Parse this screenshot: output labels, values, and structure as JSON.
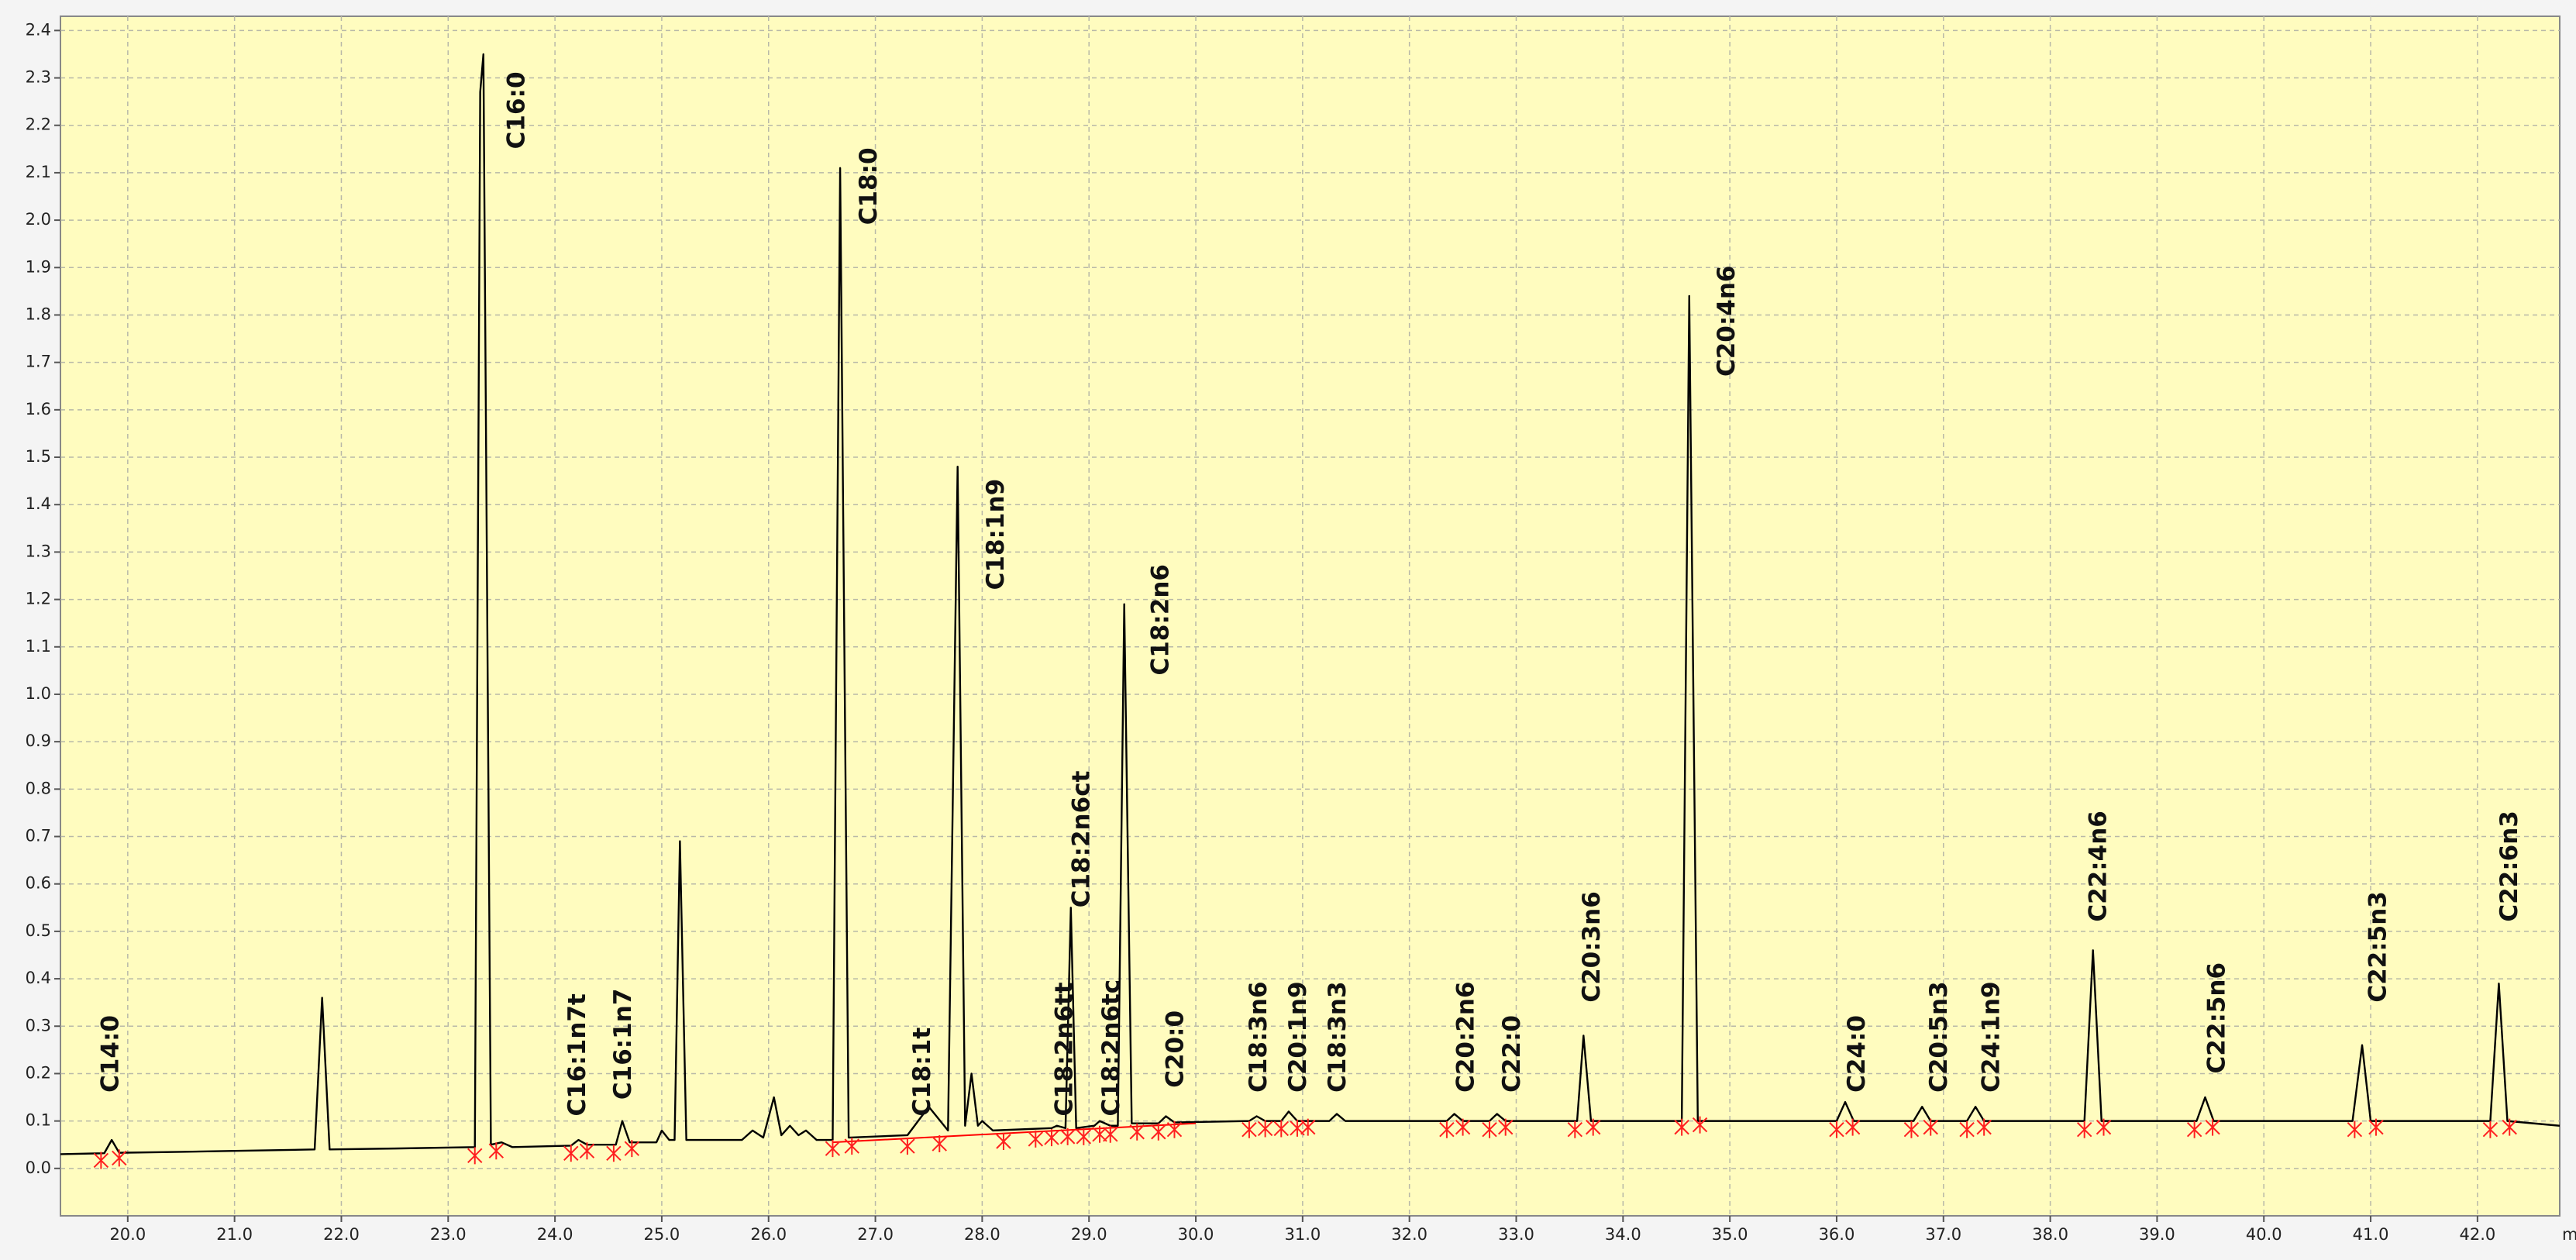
{
  "chart_data": {
    "type": "line",
    "x_label": "m",
    "color": "#000000",
    "xlim": [
      19.37,
      42.77
    ],
    "ylim": [
      -0.1,
      2.43
    ],
    "grid": true,
    "xticks": [
      {
        "value": 20,
        "label": "20.0"
      },
      {
        "value": 21,
        "label": "21.0"
      },
      {
        "value": 22,
        "label": "22.0"
      },
      {
        "value": 23,
        "label": "23.0"
      },
      {
        "value": 24,
        "label": "24.0"
      },
      {
        "value": 25,
        "label": "25.0"
      },
      {
        "value": 26,
        "label": "26.0"
      },
      {
        "value": 27,
        "label": "27.0"
      },
      {
        "value": 28,
        "label": "28.0"
      },
      {
        "value": 29,
        "label": "29.0"
      },
      {
        "value": 30,
        "label": "30.0"
      },
      {
        "value": 31,
        "label": "31.0"
      },
      {
        "value": 32,
        "label": "32.0"
      },
      {
        "value": 33,
        "label": "33.0"
      },
      {
        "value": 34,
        "label": "34.0"
      },
      {
        "value": 35,
        "label": "35.0"
      },
      {
        "value": 36,
        "label": "36.0"
      },
      {
        "value": 37,
        "label": "37.0"
      },
      {
        "value": 38,
        "label": "38.0"
      },
      {
        "value": 39,
        "label": "39.0"
      },
      {
        "value": 40,
        "label": "40.0"
      },
      {
        "value": 41,
        "label": "41.0"
      },
      {
        "value": 42,
        "label": "42.0"
      }
    ],
    "yticks": [
      {
        "value": 0,
        "label": "0.0"
      },
      0.1,
      0.2,
      0.3,
      0.4,
      0.5,
      0.6,
      0.7,
      0.8,
      0.9,
      {
        "value": 1,
        "label": "1.0"
      },
      1.1,
      1.2,
      1.3,
      1.4,
      1.5,
      1.6,
      1.7,
      1.8,
      1.9,
      {
        "value": 2,
        "label": "2.0"
      },
      2.1,
      2.2,
      2.3,
      2.4
    ],
    "x": [
      19.37,
      19.78,
      19.85,
      19.92,
      20.5,
      21.0,
      21.75,
      21.82,
      21.89,
      22.5,
      23.25,
      23.3,
      23.33,
      23.4,
      23.5,
      23.6,
      24.15,
      24.22,
      24.3,
      24.57,
      24.63,
      24.7,
      24.95,
      25.0,
      25.07,
      25.12,
      25.17,
      25.23,
      25.75,
      25.85,
      25.95,
      26.05,
      26.12,
      26.2,
      26.28,
      26.35,
      26.45,
      26.6,
      26.67,
      26.75,
      27.3,
      27.5,
      27.68,
      27.77,
      27.84,
      27.9,
      27.96,
      28.0,
      28.1,
      28.65,
      28.7,
      28.78,
      28.83,
      28.88,
      29.05,
      29.1,
      29.2,
      29.27,
      29.33,
      29.4,
      29.65,
      29.72,
      29.8,
      30.5,
      30.57,
      30.65,
      30.8,
      30.87,
      30.95,
      31.25,
      31.32,
      31.4,
      32.35,
      32.42,
      32.5,
      32.75,
      32.82,
      32.9,
      33.57,
      33.63,
      33.7,
      34.55,
      34.62,
      34.7,
      36.0,
      36.08,
      36.16,
      36.72,
      36.8,
      36.88,
      37.22,
      37.3,
      37.38,
      38.32,
      38.4,
      38.48,
      39.37,
      39.45,
      39.53,
      40.83,
      40.92,
      41.0,
      42.12,
      42.2,
      42.28,
      42.77
    ],
    "values": [
      0.03,
      0.032,
      0.06,
      0.033,
      0.035,
      0.037,
      0.04,
      0.36,
      0.04,
      0.042,
      0.045,
      2.27,
      2.35,
      0.05,
      0.055,
      0.045,
      0.048,
      0.06,
      0.05,
      0.05,
      0.1,
      0.055,
      0.055,
      0.08,
      0.06,
      0.06,
      0.69,
      0.06,
      0.06,
      0.08,
      0.065,
      0.15,
      0.07,
      0.09,
      0.07,
      0.08,
      0.06,
      0.06,
      2.11,
      0.065,
      0.07,
      0.13,
      0.08,
      1.48,
      0.09,
      0.2,
      0.09,
      0.1,
      0.08,
      0.085,
      0.09,
      0.085,
      0.55,
      0.085,
      0.09,
      0.1,
      0.09,
      0.09,
      1.19,
      0.095,
      0.095,
      0.11,
      0.097,
      0.1,
      0.11,
      0.1,
      0.1,
      0.12,
      0.1,
      0.1,
      0.115,
      0.1,
      0.1,
      0.115,
      0.1,
      0.1,
      0.115,
      0.1,
      0.1,
      0.28,
      0.1,
      0.1,
      1.84,
      0.1,
      0.1,
      0.14,
      0.1,
      0.1,
      0.13,
      0.1,
      0.1,
      0.13,
      0.1,
      0.1,
      0.46,
      0.1,
      0.1,
      0.15,
      0.1,
      0.1,
      0.26,
      0.1,
      0.1,
      0.39,
      0.1,
      0.09
    ],
    "baseline": {
      "color": "#ff0000",
      "x": [
        26.6,
        30.0
      ],
      "values": [
        0.055,
        0.095
      ]
    },
    "integration_marks": {
      "color": "#ff2020",
      "x": [
        19.75,
        19.92,
        23.25,
        23.45,
        24.15,
        24.3,
        24.55,
        24.72,
        26.6,
        26.78,
        27.3,
        27.6,
        28.2,
        28.5,
        28.65,
        28.8,
        28.95,
        29.1,
        29.2,
        29.45,
        29.65,
        29.8,
        30.5,
        30.65,
        30.8,
        30.95,
        31.05,
        32.35,
        32.5,
        32.75,
        32.9,
        33.55,
        33.72,
        34.55,
        34.72,
        36.0,
        36.15,
        36.7,
        36.88,
        37.22,
        37.38,
        38.32,
        38.5,
        39.35,
        39.52,
        40.85,
        41.05,
        42.12,
        42.3
      ],
      "values": [
        0.03,
        0.035,
        0.04,
        0.05,
        0.045,
        0.05,
        0.045,
        0.055,
        0.055,
        0.06,
        0.06,
        0.065,
        0.07,
        0.075,
        0.078,
        0.08,
        0.08,
        0.085,
        0.085,
        0.09,
        0.09,
        0.095,
        0.095,
        0.097,
        0.097,
        0.098,
        0.1,
        0.095,
        0.1,
        0.095,
        0.1,
        0.095,
        0.1,
        0.1,
        0.105,
        0.095,
        0.1,
        0.095,
        0.1,
        0.095,
        0.1,
        0.095,
        0.1,
        0.095,
        0.1,
        0.095,
        0.1,
        0.095,
        0.1
      ]
    },
    "annotations": [
      {
        "text": "C14:0",
        "x": 19.85,
        "y": 0.16
      },
      {
        "text": "C16:0",
        "x": 23.65,
        "y": 2.15
      },
      {
        "text": "C16:1n7t",
        "x": 24.22,
        "y": 0.11
      },
      {
        "text": "C16:1n7",
        "x": 24.65,
        "y": 0.145
      },
      {
        "text": "C18:0",
        "x": 26.95,
        "y": 1.99
      },
      {
        "text": "C18:1t",
        "x": 27.45,
        "y": 0.11
      },
      {
        "text": "C18:1n9",
        "x": 28.14,
        "y": 1.22
      },
      {
        "text": "C18:2n6tt",
        "x": 28.78,
        "y": 0.11
      },
      {
        "text": "C18:2n6ct",
        "x": 28.94,
        "y": 0.55
      },
      {
        "text": "C18:2n6tc",
        "x": 29.22,
        "y": 0.11
      },
      {
        "text": "C18:2n6",
        "x": 29.68,
        "y": 1.04
      },
      {
        "text": "C20:0",
        "x": 29.82,
        "y": 0.17
      },
      {
        "text": "C18:3n6",
        "x": 30.6,
        "y": 0.16
      },
      {
        "text": "C20:1n9",
        "x": 30.97,
        "y": 0.16
      },
      {
        "text": "C18:3n3",
        "x": 31.34,
        "y": 0.16
      },
      {
        "text": "C20:2n6",
        "x": 32.54,
        "y": 0.16
      },
      {
        "text": "C22:0",
        "x": 32.97,
        "y": 0.16
      },
      {
        "text": "C20:3n6",
        "x": 33.72,
        "y": 0.35
      },
      {
        "text": "C20:4n6",
        "x": 34.98,
        "y": 1.67
      },
      {
        "text": "C24:0",
        "x": 36.2,
        "y": 0.16
      },
      {
        "text": "C20:5n3",
        "x": 36.97,
        "y": 0.16
      },
      {
        "text": "C24:1n9",
        "x": 37.46,
        "y": 0.16
      },
      {
        "text": "C22:4n6",
        "x": 38.46,
        "y": 0.52
      },
      {
        "text": "C22:5n6",
        "x": 39.57,
        "y": 0.2
      },
      {
        "text": "C22:5n3",
        "x": 41.08,
        "y": 0.35
      },
      {
        "text": "C22:6n3",
        "x": 42.31,
        "y": 0.52
      }
    ]
  }
}
